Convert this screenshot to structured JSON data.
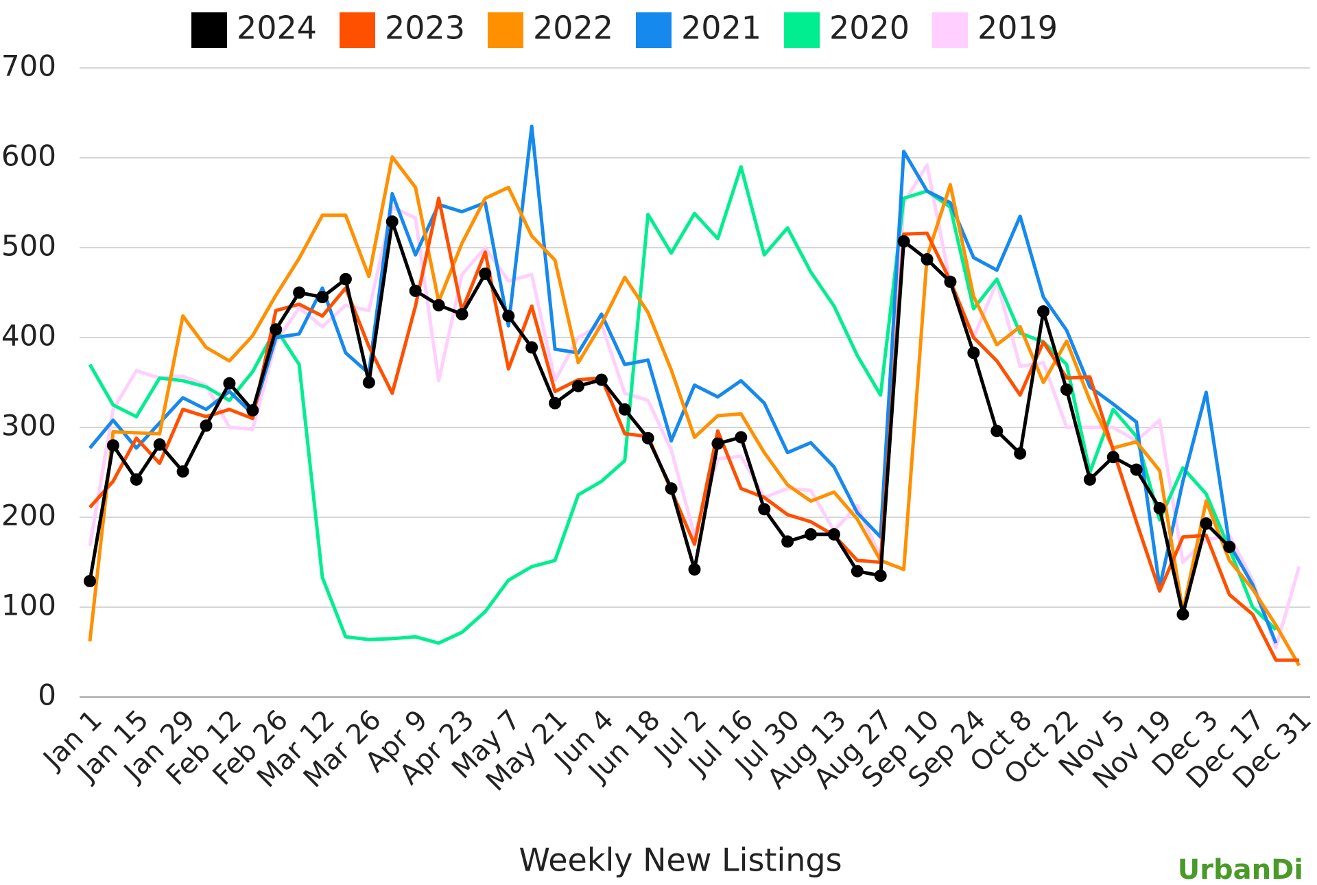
{
  "chart_data": {
    "type": "line",
    "title": "Weekly New Listings",
    "watermark": "UrbanDi",
    "categories": [
      "Jan 1",
      null,
      "Jan 15",
      null,
      "Jan 29",
      null,
      "Feb 12",
      null,
      "Feb 26",
      null,
      "Mar 12",
      null,
      "Mar 26",
      null,
      "Apr 9",
      null,
      "Apr 23",
      null,
      "May 7",
      null,
      "May 21",
      null,
      "Jun 4",
      null,
      "Jun 18",
      null,
      "Jul 2",
      null,
      "Jul 16",
      null,
      "Jul 30",
      null,
      "Aug 13",
      null,
      "Aug 27",
      null,
      "Sep 10",
      null,
      "Sep 24",
      null,
      "Oct 8",
      null,
      "Oct 22",
      null,
      "Nov 5",
      null,
      "Nov 19",
      null,
      "Dec 3",
      null,
      "Dec 17",
      null,
      "Dec 31"
    ],
    "series": [
      {
        "name": "2024",
        "color": "#000000",
        "marker": true,
        "values": [
          129,
          280,
          242,
          281,
          251,
          302,
          349,
          319,
          409,
          450,
          445,
          465,
          350,
          529,
          452,
          436,
          426,
          471,
          424,
          389,
          327,
          346,
          353,
          320,
          288,
          232,
          142,
          282,
          289,
          209,
          173,
          181,
          181,
          140,
          135,
          507,
          487,
          462,
          383,
          296,
          271,
          429,
          342,
          242,
          267,
          253,
          210,
          92,
          193,
          167,
          null,
          null,
          null
        ]
      },
      {
        "name": "2023",
        "color": "#ff5000",
        "values": [
          211,
          240,
          288,
          260,
          320,
          312,
          320,
          310,
          430,
          437,
          424,
          455,
          390,
          338,
          435,
          555,
          430,
          495,
          365,
          435,
          340,
          353,
          355,
          293,
          290,
          230,
          170,
          296,
          232,
          222,
          203,
          195,
          180,
          152,
          150,
          515,
          516,
          463,
          400,
          374,
          336,
          395,
          355,
          356,
          275,
          195,
          118,
          178,
          180,
          114,
          92,
          41,
          41
        ]
      },
      {
        "name": "2022",
        "color": "#ff9000",
        "values": [
          62,
          295,
          294,
          293,
          424,
          389,
          374,
          402,
          447,
          488,
          536,
          536,
          468,
          601,
          567,
          440,
          505,
          555,
          567,
          513,
          486,
          372,
          415,
          467,
          428,
          364,
          289,
          313,
          315,
          272,
          236,
          218,
          228,
          198,
          152,
          142,
          490,
          570,
          446,
          392,
          412,
          350,
          396,
          330,
          277,
          284,
          252,
          95,
          218,
          152,
          120,
          80,
          35
        ]
      },
      {
        "name": "2021",
        "color": "#1589ee",
        "values": [
          277,
          308,
          277,
          305,
          333,
          320,
          340,
          315,
          400,
          404,
          455,
          383,
          360,
          560,
          492,
          548,
          540,
          550,
          413,
          635,
          387,
          383,
          426,
          370,
          375,
          285,
          347,
          334,
          352,
          327,
          272,
          283,
          256,
          205,
          178,
          607,
          563,
          550,
          489,
          475,
          535,
          445,
          408,
          345,
          326,
          306,
          122,
          240,
          339,
          170,
          125,
          60,
          null
        ]
      },
      {
        "name": "2020",
        "color": "#00ee90",
        "values": [
          370,
          325,
          312,
          355,
          352,
          345,
          330,
          362,
          410,
          370,
          133,
          67,
          64,
          65,
          67,
          60,
          72,
          95,
          130,
          145,
          152,
          225,
          240,
          263,
          537,
          494,
          538,
          510,
          590,
          492,
          522,
          473,
          435,
          380,
          336,
          555,
          563,
          545,
          432,
          465,
          405,
          395,
          370,
          250,
          320,
          290,
          197,
          255,
          226,
          165,
          100,
          75,
          null
        ]
      },
      {
        "name": "2019",
        "color": "#ffd0ff",
        "values": [
          168,
          320,
          363,
          355,
          357,
          347,
          300,
          298,
          395,
          433,
          412,
          436,
          430,
          545,
          533,
          352,
          470,
          500,
          463,
          470,
          352,
          400,
          415,
          338,
          330,
          275,
          180,
          265,
          268,
          222,
          232,
          230,
          185,
          213,
          155,
          550,
          592,
          460,
          400,
          462,
          368,
          372,
          300,
          300,
          300,
          285,
          308,
          150,
          175,
          180,
          130,
          55,
          145
        ]
      }
    ],
    "ylim": [
      0,
      700
    ],
    "yticks": [
      0,
      100,
      200,
      300,
      400,
      500,
      600,
      700
    ],
    "grid": true,
    "legend": "top"
  }
}
